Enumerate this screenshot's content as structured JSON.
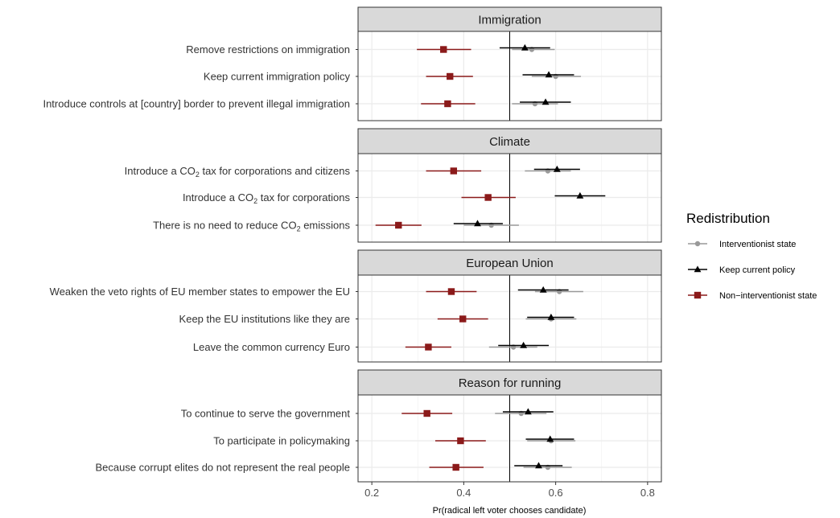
{
  "chart_data": {
    "type": "scatter",
    "subtype": "faceted dot-and-whisker",
    "xlabel": "Pr(radical left voter chooses candidate)",
    "xlim": [
      0.17,
      0.83
    ],
    "xticks": [
      0.2,
      0.4,
      0.6,
      0.8
    ],
    "xtick_labels": [
      "0.2",
      "0.4",
      "0.6",
      "0.8"
    ],
    "reference_line": 0.5,
    "grid": true,
    "legend": {
      "title": "Redistribution",
      "position": "right",
      "entries": [
        {
          "key": "interventionist",
          "label": "Interventionist state",
          "color": "#999999",
          "marker": "circle"
        },
        {
          "key": "keep",
          "label": "Keep current policy",
          "color": "#000000",
          "marker": "triangle"
        },
        {
          "key": "non",
          "label": "Non−interventionist state",
          "color": "#8b1a1a",
          "marker": "square"
        }
      ]
    },
    "panels": [
      {
        "title": "Immigration",
        "rows": [
          {
            "label": "Remove restrictions on immigration",
            "interventionist": {
              "est": 0.548,
              "lo": 0.505,
              "hi": 0.598
            },
            "keep": {
              "est": 0.533,
              "lo": 0.478,
              "hi": 0.588
            },
            "non": {
              "est": 0.356,
              "lo": 0.298,
              "hi": 0.416
            }
          },
          {
            "label": "Keep current immigration policy",
            "interventionist": {
              "est": 0.6,
              "lo": 0.548,
              "hi": 0.655
            },
            "keep": {
              "est": 0.585,
              "lo": 0.528,
              "hi": 0.64
            },
            "non": {
              "est": 0.37,
              "lo": 0.318,
              "hi": 0.42
            }
          },
          {
            "label": "Introduce controls at [country] border to prevent illegal immigration",
            "interventionist": {
              "est": 0.555,
              "lo": 0.505,
              "hi": 0.605
            },
            "keep": {
              "est": 0.578,
              "lo": 0.522,
              "hi": 0.633
            },
            "non": {
              "est": 0.365,
              "lo": 0.307,
              "hi": 0.425
            }
          }
        ]
      },
      {
        "title": "Climate",
        "rows": [
          {
            "label_parts": [
              "Introduce a CO",
              "2",
              " tax for corporations and citizens"
            ],
            "interventionist": {
              "est": 0.583,
              "lo": 0.533,
              "hi": 0.633
            },
            "keep": {
              "est": 0.603,
              "lo": 0.553,
              "hi": 0.653
            },
            "non": {
              "est": 0.378,
              "lo": 0.318,
              "hi": 0.438
            }
          },
          {
            "label_parts": [
              "Introduce a CO",
              "2",
              " tax for corporations"
            ],
            "interventionist": null,
            "keep": {
              "est": 0.653,
              "lo": 0.598,
              "hi": 0.708
            },
            "non": {
              "est": 0.453,
              "lo": 0.395,
              "hi": 0.513
            }
          },
          {
            "label_parts": [
              "There is no need to reduce CO",
              "2",
              " emissions"
            ],
            "interventionist": {
              "est": 0.46,
              "lo": 0.4,
              "hi": 0.52
            },
            "keep": {
              "est": 0.43,
              "lo": 0.378,
              "hi": 0.485
            },
            "non": {
              "est": 0.258,
              "lo": 0.208,
              "hi": 0.308
            }
          }
        ]
      },
      {
        "title": "European Union",
        "rows": [
          {
            "label": "Weaken the veto rights of EU member states to empower the EU",
            "interventionist": {
              "est": 0.608,
              "lo": 0.555,
              "hi": 0.66
            },
            "keep": {
              "est": 0.573,
              "lo": 0.518,
              "hi": 0.628
            },
            "non": {
              "est": 0.373,
              "lo": 0.318,
              "hi": 0.428
            }
          },
          {
            "label": "Keep the EU institutions like they are",
            "interventionist": {
              "est": 0.59,
              "lo": 0.535,
              "hi": 0.645
            },
            "keep": {
              "est": 0.59,
              "lo": 0.538,
              "hi": 0.64
            },
            "non": {
              "est": 0.398,
              "lo": 0.343,
              "hi": 0.453
            }
          },
          {
            "label": "Leave the common currency Euro",
            "interventionist": {
              "est": 0.508,
              "lo": 0.455,
              "hi": 0.56
            },
            "keep": {
              "est": 0.53,
              "lo": 0.475,
              "hi": 0.585
            },
            "non": {
              "est": 0.323,
              "lo": 0.273,
              "hi": 0.373
            }
          }
        ]
      },
      {
        "title": "Reason for running",
        "rows": [
          {
            "label": "To continue to serve the government",
            "interventionist": {
              "est": 0.525,
              "lo": 0.468,
              "hi": 0.58
            },
            "keep": {
              "est": 0.54,
              "lo": 0.485,
              "hi": 0.595
            },
            "non": {
              "est": 0.32,
              "lo": 0.265,
              "hi": 0.375
            }
          },
          {
            "label": "To participate in policymaking",
            "interventionist": {
              "est": 0.59,
              "lo": 0.538,
              "hi": 0.643
            },
            "keep": {
              "est": 0.588,
              "lo": 0.535,
              "hi": 0.64
            },
            "non": {
              "est": 0.393,
              "lo": 0.338,
              "hi": 0.448
            }
          },
          {
            "label": "Because corrupt elites do not represent the real people",
            "interventionist": {
              "est": 0.583,
              "lo": 0.53,
              "hi": 0.635
            },
            "keep": {
              "est": 0.563,
              "lo": 0.51,
              "hi": 0.615
            },
            "non": {
              "est": 0.383,
              "lo": 0.325,
              "hi": 0.443
            }
          }
        ]
      }
    ]
  }
}
